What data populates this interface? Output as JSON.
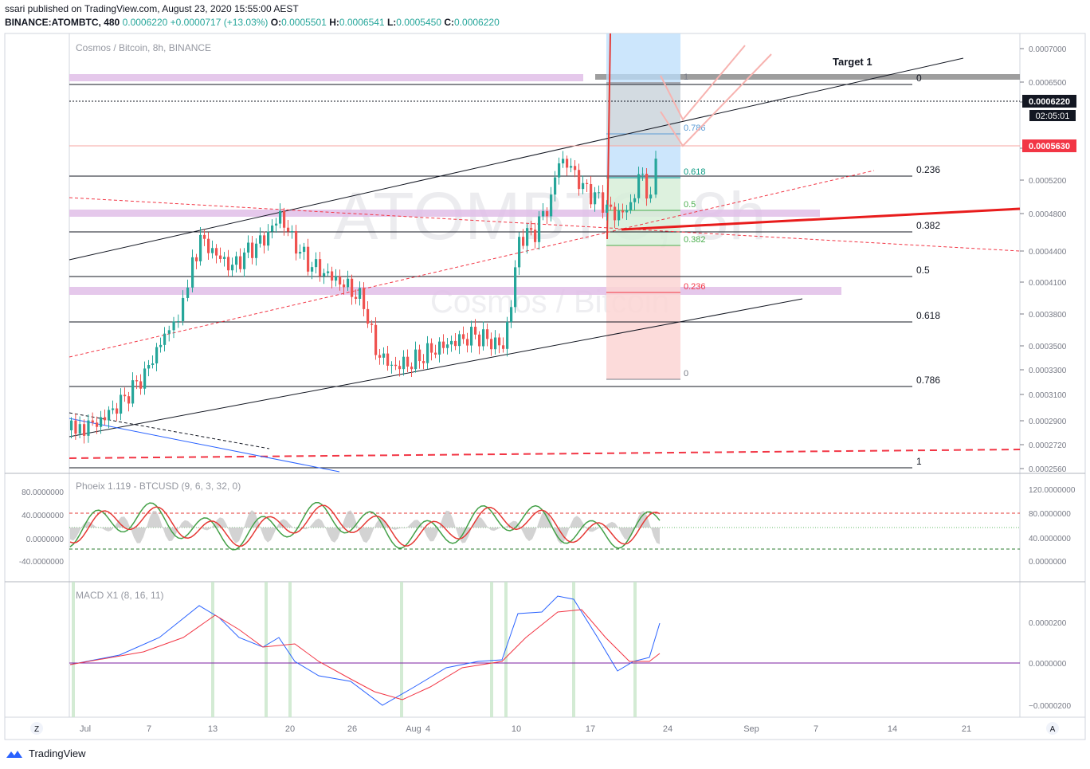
{
  "header": {
    "published": "ssari published on TradingView.com, August 23, 2020 15:55:00 AEST",
    "symbol": "BINANCE:ATOMBTC, 480",
    "price": "0.0006220",
    "change": "+0.0000717 (+13.03%)",
    "o_label": "O:",
    "o": "0.0005501",
    "h_label": "H:",
    "h": "0.0006541",
    "l_label": "L:",
    "l": "0.0005450",
    "c_label": "C:",
    "c": "0.0006220"
  },
  "chart": {
    "pair_label": "Cosmos / Bitcoin, 8h, BINANCE",
    "watermark_big": "ATOMBTC, 8h",
    "watermark_small": "Cosmos / Bitcoin",
    "price_badge": "0.0006220",
    "countdown_badge": "02:05:01",
    "resistance_badge": "0.0005630",
    "target_label": "Target 1",
    "fib_right": [
      {
        "label": "0",
        "price": 0.00065
      },
      {
        "label": "0.236",
        "price": 0.000523
      },
      {
        "label": "0.382",
        "price": 0.000462
      },
      {
        "label": "0.5",
        "price": 0.000412
      },
      {
        "label": "0.618",
        "price": 0.000363
      },
      {
        "label": "0.786",
        "price": 0.000314
      },
      {
        "label": "1",
        "price": 0.000255
      }
    ],
    "fib_inner": [
      {
        "label": "0.786",
        "color": "#5b9bd5"
      },
      {
        "label": "0.618",
        "color": "#089981"
      },
      {
        "label": "0.5",
        "color": "#4caf50"
      },
      {
        "label": "0.382",
        "color": "#4caf50"
      },
      {
        "label": "0.236",
        "color": "#f23645"
      },
      {
        "label": "0",
        "color": "#787b86"
      },
      {
        "label": "1",
        "color": "#787b86"
      }
    ],
    "price_axis": [
      "0.0007000",
      "0.0006500",
      "0.0006000",
      "0.0005600",
      "0.0005200",
      "0.0004800",
      "0.0004400",
      "0.0004100",
      "0.0003800",
      "0.0003500",
      "0.0003300",
      "0.0003100",
      "0.0002900",
      "0.0002720",
      "0.0002560"
    ]
  },
  "phoenix": {
    "label": "Phoeix 1.119 - BTCUSD (9, 6, 3, 32, 0)",
    "left_axis": [
      "80.0000000",
      "40.0000000",
      "0.0000000",
      "-40.0000000"
    ],
    "right_axis": [
      "120.0000000",
      "80.0000000",
      "40.0000000",
      "0.0000000"
    ]
  },
  "macd": {
    "label": "MACD X1 (8, 16, 11)",
    "right_axis": [
      "0.0000200",
      "0.0000000",
      "−0.0000200"
    ]
  },
  "time_axis": [
    "Jul",
    "7",
    "13",
    "20",
    "26",
    "Aug",
    "4",
    "10",
    "17",
    "24",
    "Sep",
    "7",
    "14",
    "21"
  ],
  "corner_left": "Z",
  "corner_right": "A",
  "brand": "TradingView",
  "chart_data": {
    "type": "candlestick",
    "title": "",
    "series": [
      {
        "name": "ATOMBTC 8h close (approx)",
        "x": [
          "Jul 1",
          "Jul 4",
          "Jul 7",
          "Jul 10",
          "Jul 13",
          "Jul 16",
          "Jul 19",
          "Jul 22",
          "Jul 25",
          "Jul 28",
          "Jul 31",
          "Aug 3",
          "Aug 6",
          "Aug 9",
          "Aug 11",
          "Aug 13",
          "Aug 15",
          "Aug 17",
          "Aug 19",
          "Aug 21",
          "Aug 23"
        ],
        "values": [
          0.00028,
          0.000295,
          0.00035,
          0.00046,
          0.00043,
          0.00045,
          0.00049,
          0.00042,
          0.0004,
          0.00033,
          0.00034,
          0.00035,
          0.00036,
          0.000345,
          0.00044,
          0.00051,
          0.00053,
          0.00052,
          0.00047,
          0.0005,
          0.000622
        ]
      }
    ],
    "ylim": [
      0.000255,
      0.00071
    ]
  }
}
